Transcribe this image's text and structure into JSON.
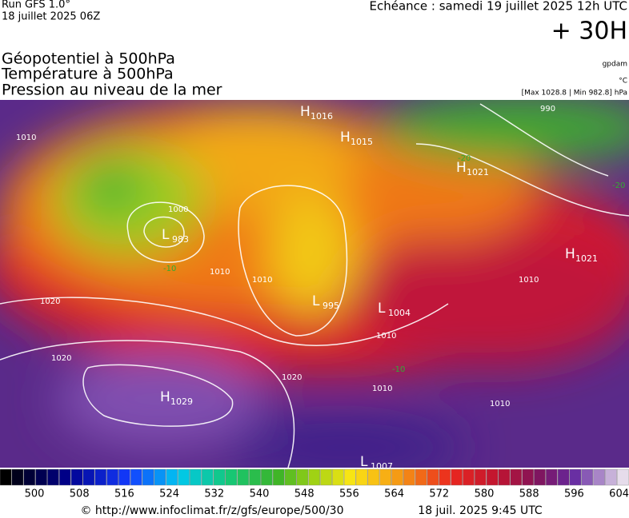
{
  "header": {
    "run": "Run GFS 1.0°",
    "date": "18 juillet 2025 06Z",
    "echeance": "Echéance : samedi 19 juillet 2025 12h UTC",
    "lead": "+ 30H",
    "titles": [
      "Géopotentiel à 500hPa",
      "Température à 500hPa",
      "Pression au niveau de la mer"
    ],
    "units": [
      "gpdam",
      "°C",
      "[Max 1028.8 | Min 982.8] hPa"
    ]
  },
  "systems": [
    {
      "kind": "H",
      "value": "1016"
    },
    {
      "kind": "H",
      "value": "1015"
    },
    {
      "kind": "H",
      "value": "1021"
    },
    {
      "kind": "L",
      "value": "983"
    },
    {
      "kind": "L",
      "value": "995"
    },
    {
      "kind": "L",
      "value": "1004"
    },
    {
      "kind": "H",
      "value": "1021"
    },
    {
      "kind": "H",
      "value": "1029"
    },
    {
      "kind": "L",
      "value": "1007"
    }
  ],
  "isobar_labels": [
    "1010",
    "1020",
    "1000",
    "1010",
    "1020",
    "1010",
    "1020",
    "1010",
    "1010",
    "1010",
    "1010",
    "990"
  ],
  "temp_labels": [
    "-20",
    "-10",
    "-20",
    "-10"
  ],
  "colorbar": {
    "labels": [
      "500",
      "508",
      "516",
      "524",
      "532",
      "540",
      "548",
      "556",
      "564",
      "572",
      "580",
      "588",
      "596",
      "604"
    ]
  },
  "footer": {
    "url": "© http://www.infoclimat.fr/z/gfs/europe/500/30",
    "time": "18 juil. 2025  9:45 UTC"
  }
}
